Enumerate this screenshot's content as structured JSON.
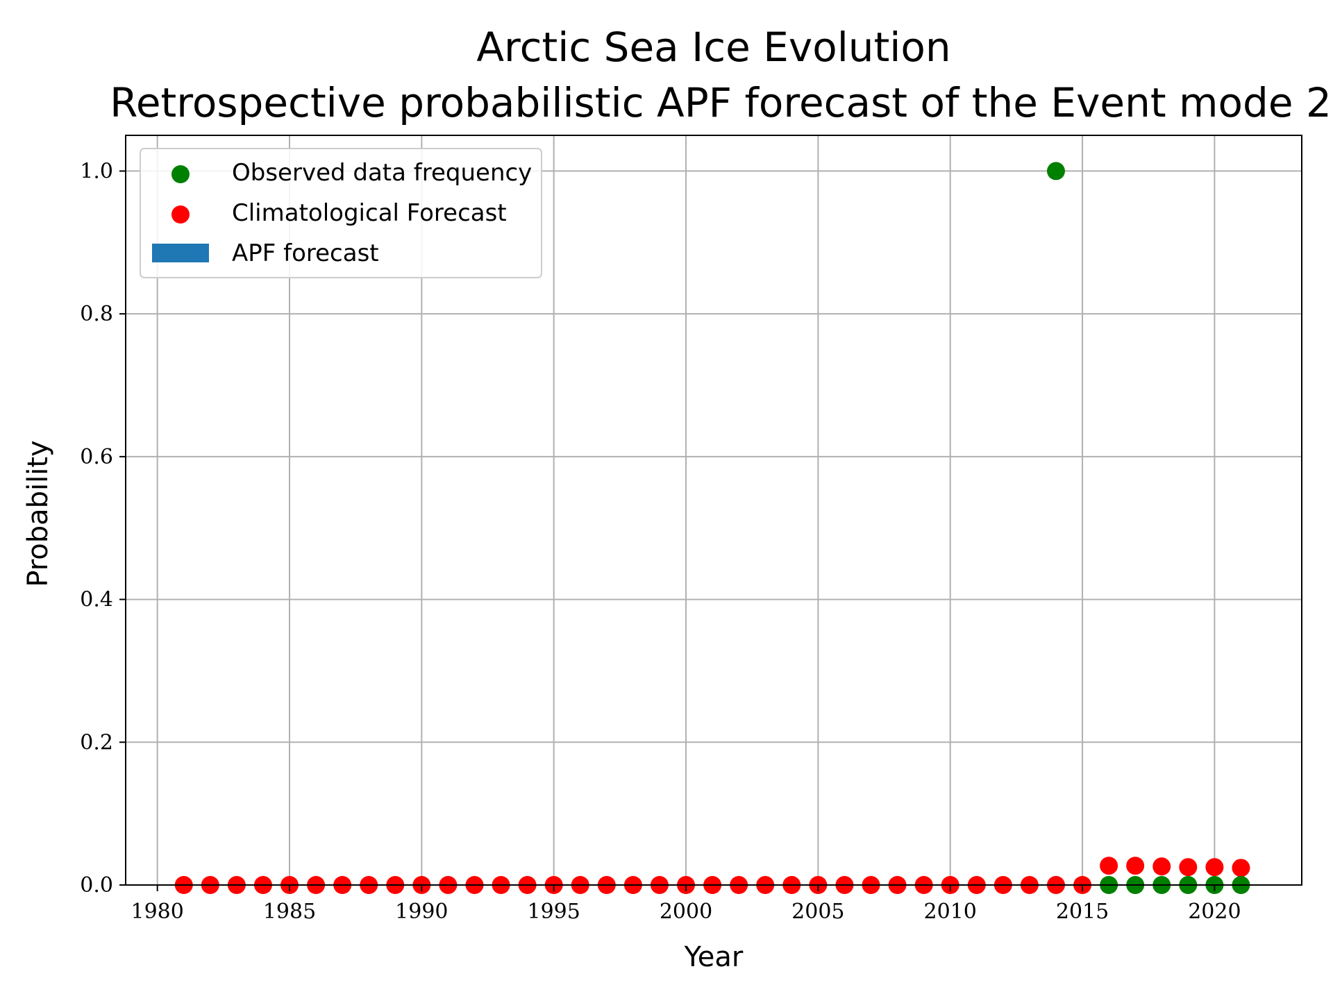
{
  "chart_data": {
    "type": "scatter",
    "title": "Arctic Sea Ice Evolution",
    "subtitle": "Retrospective probabilistic APF forecast of the Event mode 2",
    "xlabel": "Year",
    "ylabel": "Probability",
    "xlim": [
      1978.8,
      2023.3
    ],
    "ylim": [
      0.0,
      1.05
    ],
    "xticks": [
      1980,
      1985,
      1990,
      1995,
      2000,
      2005,
      2010,
      2015,
      2020
    ],
    "yticks": [
      0.0,
      0.2,
      0.4,
      0.6,
      0.8,
      1.0
    ],
    "xtick_labels": [
      "1980",
      "1985",
      "1990",
      "1995",
      "2000",
      "2005",
      "2010",
      "2015",
      "2020"
    ],
    "ytick_labels": [
      "0.0",
      "0.2",
      "0.4",
      "0.6",
      "0.8",
      "1.0"
    ],
    "grid": true,
    "legend_position": "top-left",
    "series": [
      {
        "name": "Observed data frequency",
        "kind": "scatter",
        "color": "#008000",
        "x": [
          2014,
          2016,
          2017,
          2018,
          2019,
          2020,
          2021
        ],
        "y": [
          1.0,
          0.0,
          0.0,
          0.0,
          0.0,
          0.0,
          0.0
        ]
      },
      {
        "name": "Climatological Forecast",
        "kind": "scatter",
        "color": "#ff0000",
        "x": [
          1981,
          1982,
          1983,
          1984,
          1985,
          1986,
          1987,
          1988,
          1989,
          1990,
          1991,
          1992,
          1993,
          1994,
          1995,
          1996,
          1997,
          1998,
          1999,
          2000,
          2001,
          2002,
          2003,
          2004,
          2005,
          2006,
          2007,
          2008,
          2009,
          2010,
          2011,
          2012,
          2013,
          2014,
          2015,
          2016,
          2017,
          2018,
          2019,
          2020,
          2021
        ],
        "y": [
          0,
          0,
          0,
          0,
          0,
          0,
          0,
          0,
          0,
          0,
          0,
          0,
          0,
          0,
          0,
          0,
          0,
          0,
          0,
          0,
          0,
          0,
          0,
          0,
          0,
          0,
          0,
          0,
          0,
          0,
          0,
          0,
          0,
          0,
          0,
          0.027,
          0.027,
          0.026,
          0.025,
          0.025,
          0.024
        ]
      },
      {
        "name": "APF forecast",
        "kind": "bar",
        "color": "#1f77b4",
        "x": [],
        "y": []
      }
    ]
  }
}
